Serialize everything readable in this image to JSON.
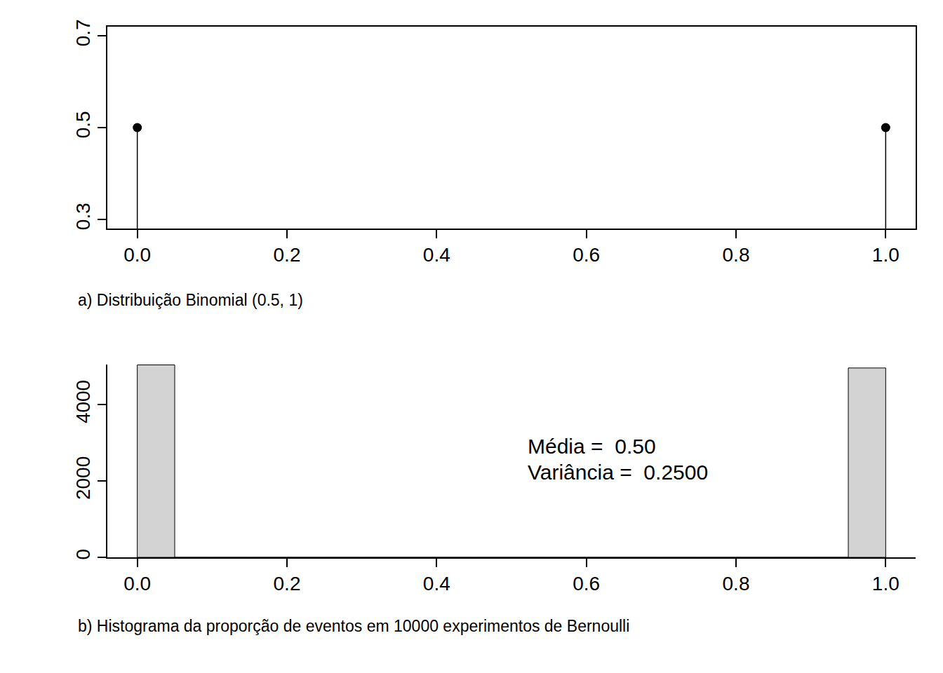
{
  "chart_data": [
    {
      "type": "stem",
      "caption": "a) Distribuição Binomial (0.5, 1)",
      "x": [
        0,
        1
      ],
      "values": [
        0.5,
        0.5
      ],
      "color": "#000000",
      "marker": "circle",
      "xlim": [
        -0.04,
        1.04
      ],
      "xticks": [
        {
          "value": 0,
          "label": "0.0"
        },
        {
          "value": 0.2,
          "label": "0.2"
        },
        {
          "value": 0.4,
          "label": "0.4"
        },
        {
          "value": 0.6,
          "label": "0.6"
        },
        {
          "value": 0.8,
          "label": "0.8"
        },
        {
          "value": 1,
          "label": "1.0"
        }
      ],
      "ylim": [
        0.28,
        0.72
      ],
      "yticks": [
        0.3,
        0.5,
        0.7
      ]
    },
    {
      "type": "histogram",
      "caption": "b) Histograma da proporção de eventos em 10000 experimentos de Bernoulli",
      "bins": [
        0,
        0.05,
        0.1,
        0.15,
        0.2,
        0.25,
        0.3,
        0.35,
        0.4,
        0.45,
        0.5,
        0.55,
        0.6,
        0.65,
        0.7,
        0.75,
        0.8,
        0.85,
        0.9,
        0.95,
        1
      ],
      "counts": [
        5040,
        0,
        0,
        0,
        0,
        0,
        0,
        0,
        0,
        0,
        0,
        0,
        0,
        0,
        0,
        0,
        0,
        0,
        0,
        4960
      ],
      "color": "#d3d3d3",
      "xlim": [
        -0.04,
        1.04
      ],
      "xticks": [
        {
          "value": 0,
          "label": "0.0"
        },
        {
          "value": 0.2,
          "label": "0.2"
        },
        {
          "value": 0.4,
          "label": "0.4"
        },
        {
          "value": 0.6,
          "label": "0.6"
        },
        {
          "value": 0.8,
          "label": "0.8"
        },
        {
          "value": 1,
          "label": "1.0"
        }
      ],
      "ylim": [
        0,
        5050
      ],
      "yticks": [
        0,
        2000,
        4000
      ],
      "annotations": [
        "Média =  0.50",
        "Variância =  0.2500"
      ]
    }
  ]
}
